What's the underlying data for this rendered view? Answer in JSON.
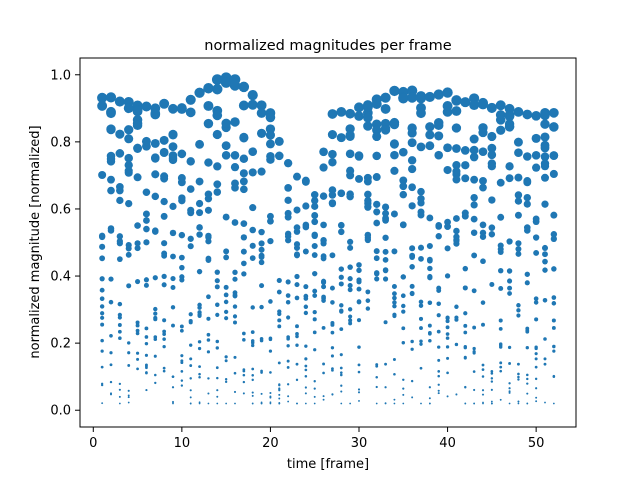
{
  "chart_data": {
    "type": "scatter",
    "title": "normalized magnitudes per frame",
    "xlabel": "time [frame]",
    "ylabel": "normalized magnitude [normalized]",
    "xlim": [
      -1.5,
      54.5
    ],
    "ylim": [
      -0.05,
      1.05
    ],
    "x_ticks": [
      0,
      10,
      20,
      30,
      40,
      50
    ],
    "y_ticks": [
      0.0,
      0.2,
      0.4,
      0.6,
      0.8,
      1.0
    ],
    "x_tick_labels": [
      "0",
      "10",
      "20",
      "30",
      "40",
      "50"
    ],
    "y_tick_labels": [
      "0.0",
      "0.2",
      "0.4",
      "0.6",
      "0.8",
      "1.0"
    ],
    "grid": false,
    "marker_color": "#1f77b4",
    "marker_size_encodes": "y",
    "frames": [
      1,
      52
    ],
    "points_per_frame": 20,
    "frame_envelopes": [
      {
        "frame": 1,
        "max": 0.95
      },
      {
        "frame": 5,
        "max": 0.92
      },
      {
        "frame": 10,
        "max": 0.91
      },
      {
        "frame": 14,
        "max": 0.99
      },
      {
        "frame": 15,
        "max": 1.0
      },
      {
        "frame": 16,
        "max": 1.0
      },
      {
        "frame": 20,
        "max": 0.89
      },
      {
        "frame": 22,
        "max": 0.74
      },
      {
        "frame": 25,
        "max": 0.66
      },
      {
        "frame": 27,
        "max": 0.89
      },
      {
        "frame": 30,
        "max": 0.91
      },
      {
        "frame": 34,
        "max": 0.96
      },
      {
        "frame": 38,
        "max": 0.95
      },
      {
        "frame": 40,
        "max": 0.95
      },
      {
        "frame": 45,
        "max": 0.92
      },
      {
        "frame": 50,
        "max": 0.88
      },
      {
        "frame": 52,
        "max": 0.9
      }
    ]
  }
}
